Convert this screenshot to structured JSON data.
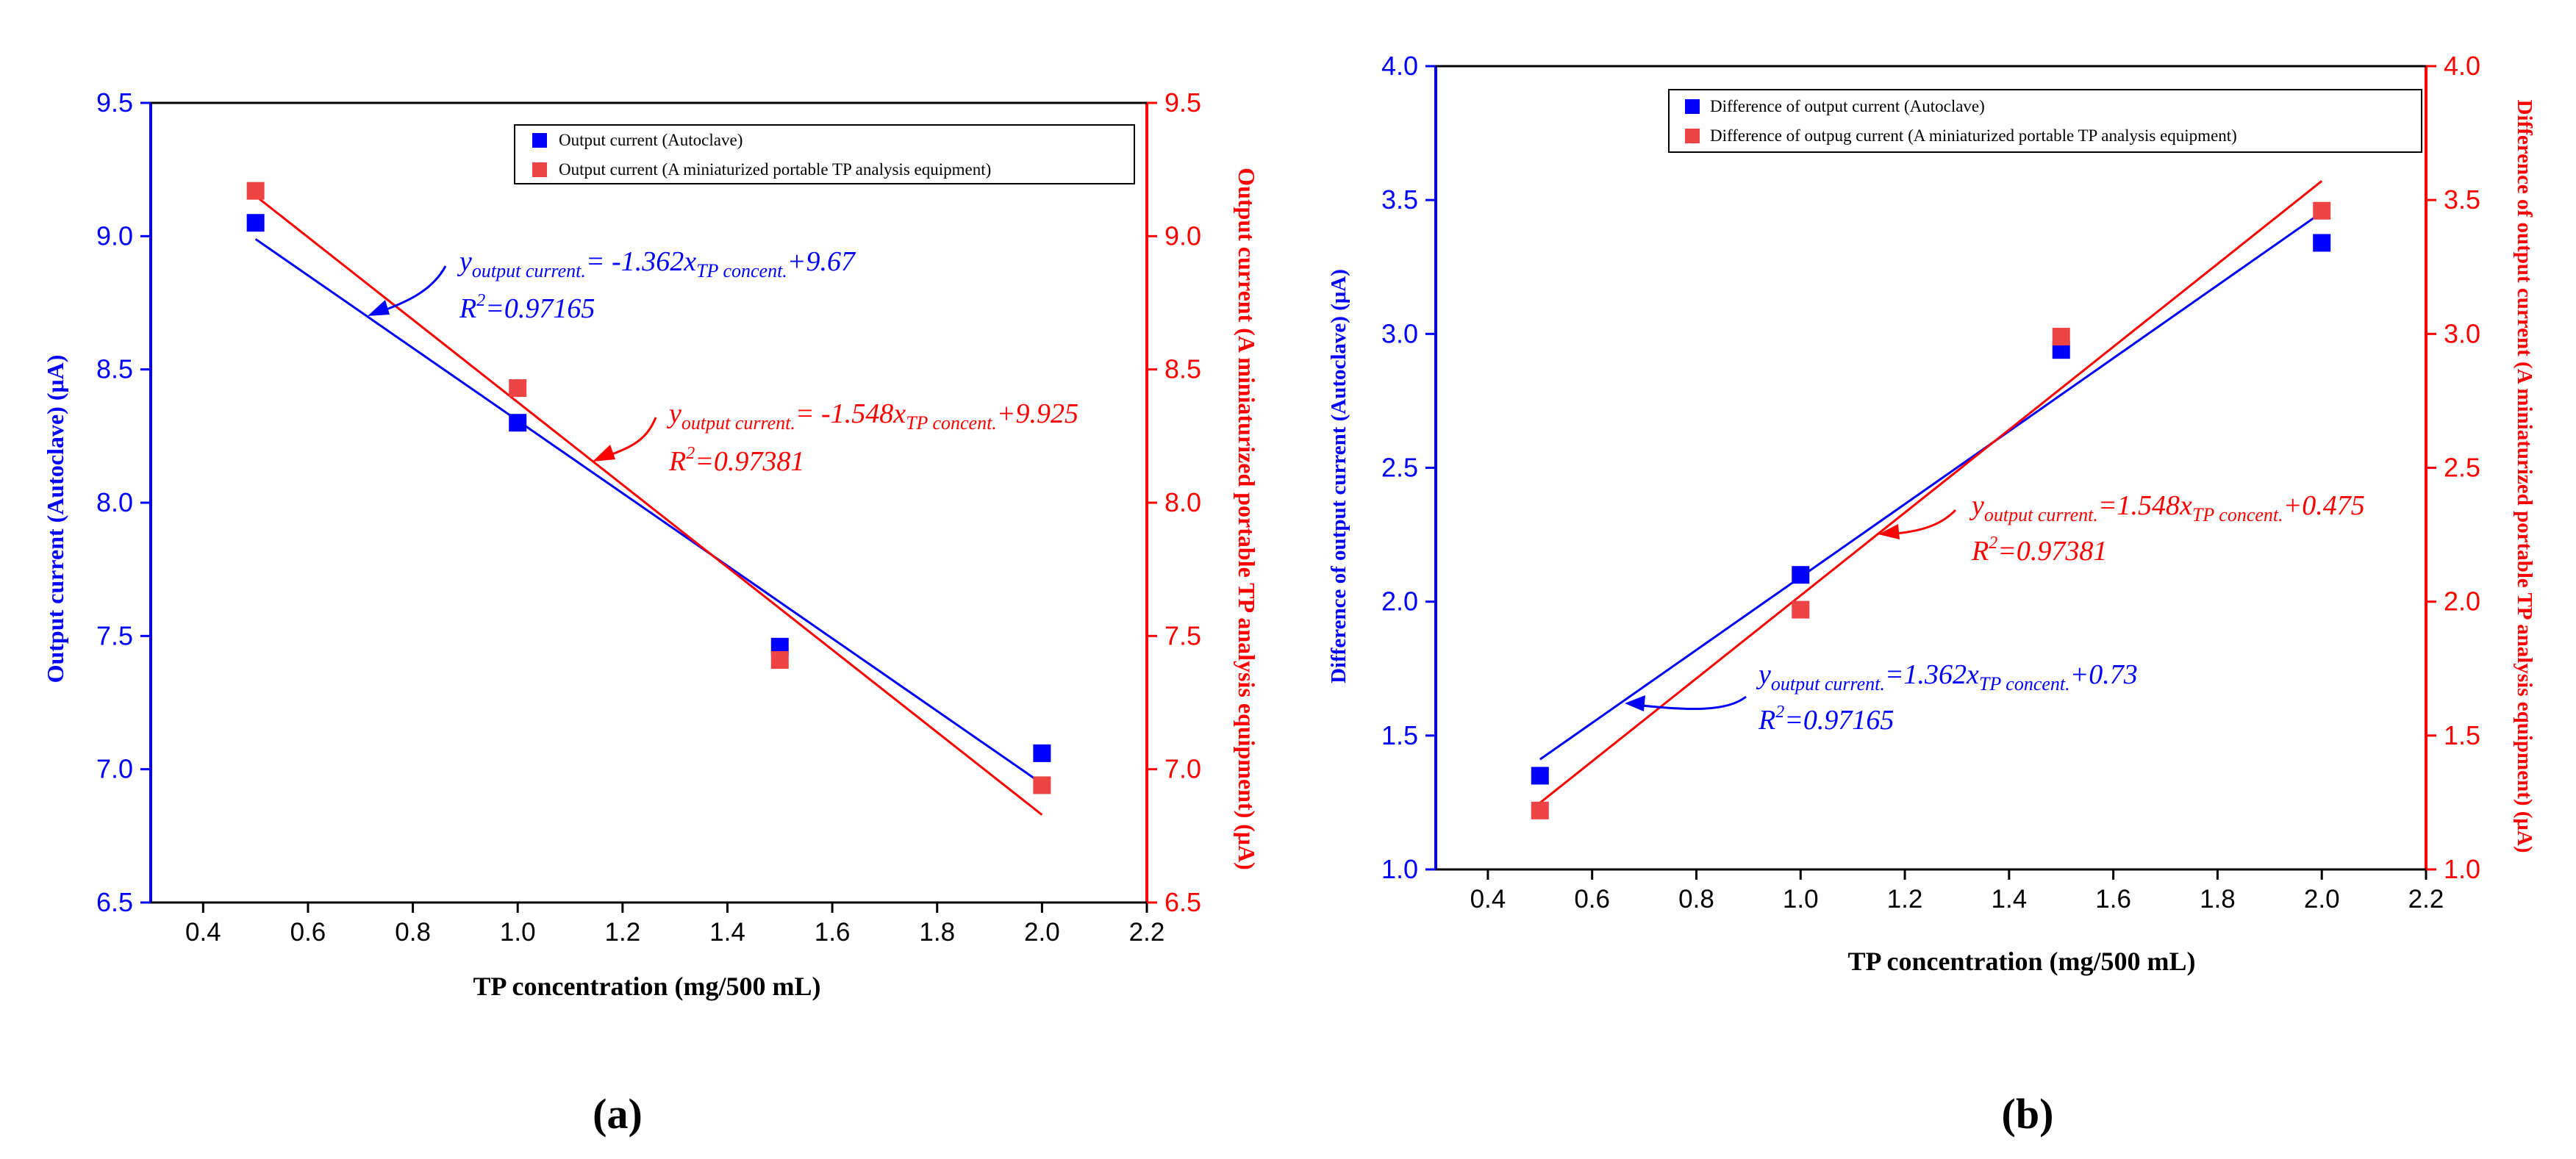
{
  "colors": {
    "autoclave": "#0000ff",
    "portable": "#ff0000",
    "marker_portable": "#ef4444",
    "axis": "#000000"
  },
  "chart_data": [
    {
      "panel_label": "(a)",
      "type": "scatter",
      "xlabel": "TP concentration (mg/500 mL)",
      "ylabel_left": "Output current (Autoclave) (μA)",
      "ylabel_right": "Output current (A miniaturized portable TP analysis equipment) (μA)",
      "xlim": [
        0.3,
        2.2
      ],
      "xticks": [
        "0.4",
        "0.6",
        "0.8",
        "1.0",
        "1.2",
        "1.4",
        "1.6",
        "1.8",
        "2.0",
        "2.2"
      ],
      "ylim_left": [
        6.5,
        9.5
      ],
      "yticks_left": [
        "6.5",
        "7.0",
        "7.5",
        "8.0",
        "8.5",
        "9.0",
        "9.5"
      ],
      "ylim_right": [
        6.5,
        9.5
      ],
      "yticks_right": [
        "6.5",
        "7.0",
        "7.5",
        "8.0",
        "8.5",
        "9.0",
        "9.5"
      ],
      "legend": [
        "Output current (Autoclave)",
        "Output current (A miniaturized portable TP analysis equipment)"
      ],
      "series": [
        {
          "name": "Output current (Autoclave)",
          "axis": "left",
          "x": [
            0.5,
            1.0,
            1.5,
            2.0
          ],
          "y": [
            9.05,
            8.3,
            7.46,
            7.06
          ],
          "fit": {
            "slope": -1.362,
            "intercept": 9.67,
            "x0": 0.5,
            "x1": 2.0
          }
        },
        {
          "name": "Output current (A miniaturized portable TP analysis equipment)",
          "axis": "right",
          "x": [
            0.5,
            1.0,
            1.5,
            2.0
          ],
          "y": [
            9.17,
            8.43,
            7.41,
            6.94
          ],
          "fit": {
            "slope": -1.548,
            "intercept": 9.925,
            "x0": 0.5,
            "x1": 2.0
          }
        }
      ],
      "annotations": [
        {
          "eq_prefix": "y",
          "eq_sub1": "output current.",
          "eq_mid": "= -1.362x",
          "eq_sub2": "TP concent.",
          "eq_suffix": "+9.67",
          "r2_prefix": "R",
          "r2_sup": "2",
          "r2_value": "=0.97165"
        },
        {
          "eq_prefix": "y",
          "eq_sub1": "output current.",
          "eq_mid": "= -1.548x",
          "eq_sub2": "TP concent.",
          "eq_suffix": "+9.925",
          "r2_prefix": "R",
          "r2_sup": "2",
          "r2_value": "=0.97381"
        }
      ]
    },
    {
      "panel_label": "(b)",
      "type": "scatter",
      "xlabel": "TP concentration (mg/500 mL)",
      "ylabel_left": "Difference of output current (Autoclave) (μA)",
      "ylabel_right": "Difference of output current (A miniaturized portable TP analysis equipment) (μA)",
      "xlim": [
        0.3,
        2.2
      ],
      "xticks": [
        "0.4",
        "0.6",
        "0.8",
        "1.0",
        "1.2",
        "1.4",
        "1.6",
        "1.8",
        "2.0",
        "2.2"
      ],
      "ylim_left": [
        1.0,
        4.0
      ],
      "yticks_left": [
        "1.0",
        "1.5",
        "2.0",
        "2.5",
        "3.0",
        "3.5",
        "4.0"
      ],
      "ylim_right": [
        1.0,
        4.0
      ],
      "yticks_right": [
        "1.0",
        "1.5",
        "2.0",
        "2.5",
        "3.0",
        "3.5",
        "4.0"
      ],
      "legend": [
        "Difference of output current (Autoclave)",
        "Difference of outpug current (A miniaturized portable TP analysis equipment)"
      ],
      "series": [
        {
          "name": "Difference of output current (Autoclave)",
          "axis": "left",
          "x": [
            0.5,
            1.0,
            1.5,
            2.0
          ],
          "y": [
            1.35,
            2.1,
            2.94,
            3.34
          ],
          "fit": {
            "slope": 1.362,
            "intercept": 0.73,
            "x0": 0.5,
            "x1": 2.0
          }
        },
        {
          "name": "Difference of outpug current (A miniaturized portable TP analysis equipment)",
          "axis": "right",
          "x": [
            0.5,
            1.0,
            1.5,
            2.0
          ],
          "y": [
            1.22,
            1.97,
            2.99,
            3.46
          ],
          "fit": {
            "slope": 1.548,
            "intercept": 0.475,
            "x0": 0.5,
            "x1": 2.0
          }
        }
      ],
      "annotations": [
        {
          "eq_prefix": "y",
          "eq_sub1": "output current.",
          "eq_mid": "=1.362x",
          "eq_sub2": "TP concent.",
          "eq_suffix": "+0.73",
          "r2_prefix": "R",
          "r2_sup": "2",
          "r2_value": "=0.97165"
        },
        {
          "eq_prefix": "y",
          "eq_sub1": "output current.",
          "eq_mid": "=1.548x",
          "eq_sub2": "TP concent.",
          "eq_suffix": "+0.475",
          "r2_prefix": "R",
          "r2_sup": "2",
          "r2_value": "=0.97381"
        }
      ]
    }
  ]
}
